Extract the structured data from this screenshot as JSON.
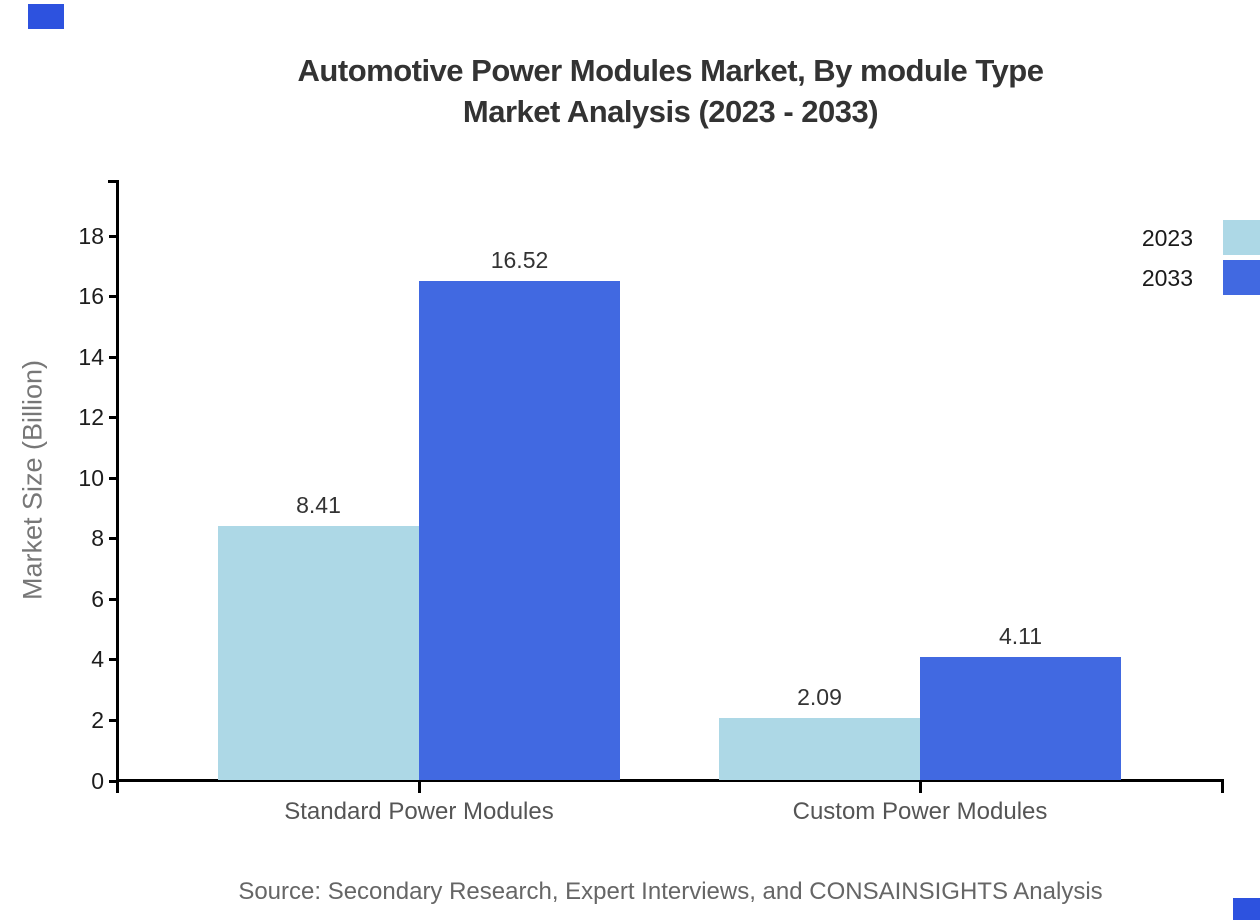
{
  "title": {
    "line1": "Automotive Power Modules Market, By module Type",
    "line2": "Market Analysis (2023 - 2033)"
  },
  "y_axis": {
    "label": "Market Size (Billion)",
    "ticks": [
      0,
      2,
      4,
      6,
      8,
      10,
      12,
      14,
      16,
      18
    ]
  },
  "chart_data": {
    "type": "bar",
    "categories": [
      "Standard Power Modules",
      "Custom Power Modules"
    ],
    "series": [
      {
        "name": "2023",
        "color": "#ADD8E6",
        "values": [
          8.41,
          2.09
        ]
      },
      {
        "name": "2033",
        "color": "#4169E1",
        "values": [
          16.52,
          4.11
        ]
      }
    ],
    "title": "Automotive Power Modules Market, By module Type Market Analysis (2023 - 2033)",
    "xlabel": "",
    "ylabel": "Market Size (Billion)",
    "ylim": [
      0,
      19.8
    ],
    "ytick_step": 2,
    "grid": false,
    "value_labels": [
      "8.41",
      "16.52",
      "2.09",
      "4.11"
    ],
    "legend_position": "top-right"
  },
  "legend": {
    "items": [
      {
        "label": "2023",
        "color": "#ADD8E6"
      },
      {
        "label": "2033",
        "color": "#4169E1"
      }
    ]
  },
  "source": {
    "text": "Source: Secondary Research, Expert Interviews, and CONSAINSIGHTS Analysis"
  },
  "colors": {
    "axis": "#000000",
    "title_text": "#333333",
    "tick_text": "#1d1d1d",
    "category_text": "#555555",
    "axis_title_text": "#777777",
    "source_text": "#666666",
    "brand_mark": "#2d52df"
  }
}
